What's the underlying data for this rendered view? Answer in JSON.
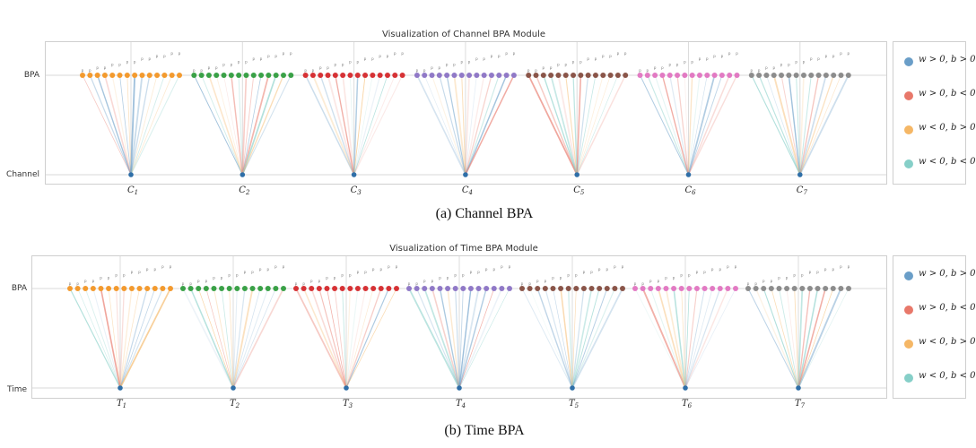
{
  "palette": {
    "w_pos_b_pos": "#6a9ec8",
    "w_pos_b_neg": "#e8786a",
    "w_neg_b_pos": "#f5b766",
    "w_neg_b_neg": "#86cfc8",
    "group_colors": [
      "#f39a2e",
      "#3aa147",
      "#d63235",
      "#9079c7",
      "#8a5549",
      "#e27ac3",
      "#8c8c8c"
    ],
    "input_node": "#2f6fa8"
  },
  "legend": [
    {
      "label": "w > 0, b > 0",
      "color_key": "w_pos_b_pos"
    },
    {
      "label": "w > 0, b < 0",
      "color_key": "w_pos_b_neg"
    },
    {
      "label": "w < 0, b > 0",
      "color_key": "w_neg_b_pos"
    },
    {
      "label": "w < 0, b < 0",
      "color_key": "w_neg_b_neg"
    }
  ],
  "panels": [
    {
      "id": "channel",
      "title": "Visualization of Channel BPA Module",
      "top_label": "BPA",
      "bottom_label": "Channel",
      "caption": "(a) Channel BPA",
      "node_prefix": "C",
      "groups": [
        "1",
        "2",
        "3",
        "4",
        "5",
        "6",
        "7"
      ],
      "basis_label_glyphs": [
        "p",
        "p",
        "p",
        "p",
        "p",
        "p",
        "p",
        "p",
        "p",
        "p",
        "p",
        "p",
        "p",
        "p"
      ]
    },
    {
      "id": "time",
      "title": "Visualization of Time BPA Module",
      "top_label": "BPA",
      "bottom_label": "Time",
      "caption": "(b) Time BPA",
      "node_prefix": "T",
      "groups": [
        "1",
        "2",
        "3",
        "4",
        "5",
        "6",
        "7"
      ],
      "basis_label_glyphs": [
        "p",
        "p",
        "p",
        "p",
        "p",
        "p",
        "p",
        "p",
        "p",
        "p",
        "p",
        "p",
        "p",
        "p"
      ]
    }
  ]
}
